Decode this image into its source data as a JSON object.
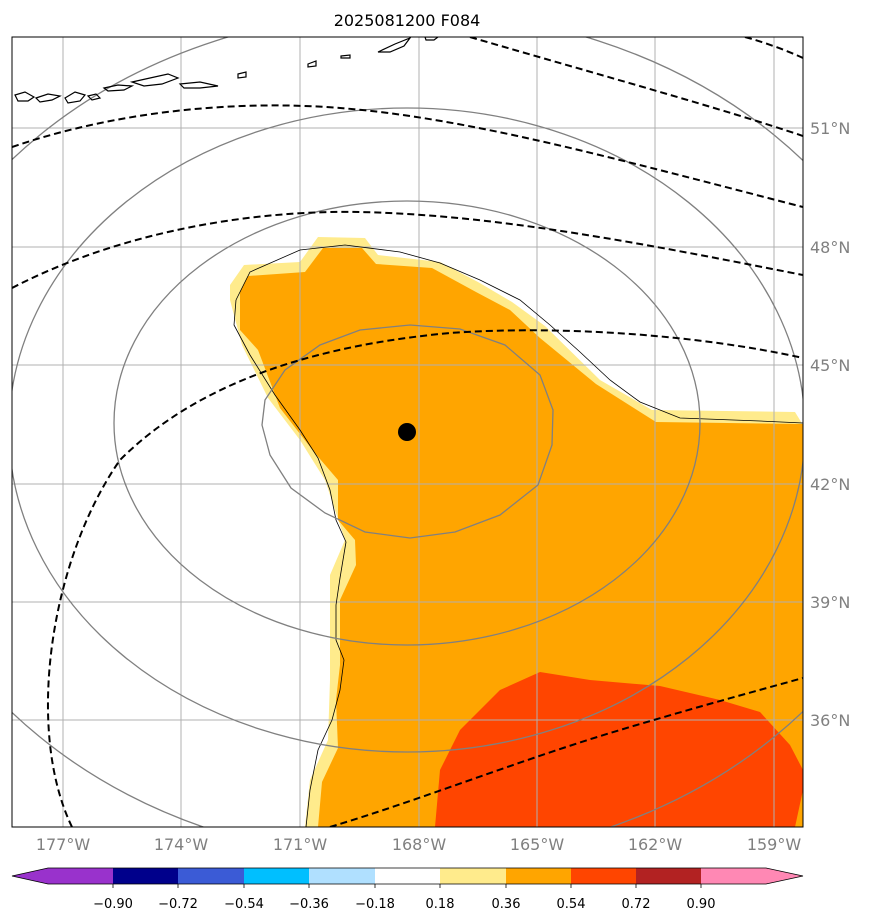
{
  "title": "2025081200 F084",
  "lon_labels": [
    "177°W",
    "174°W",
    "171°W",
    "168°W",
    "165°W",
    "162°W",
    "159°W"
  ],
  "lat_labels": [
    "51°N",
    "48°N",
    "45°N",
    "42°N",
    "39°N",
    "36°N"
  ],
  "colorbar": {
    "tick_labels": [
      "−0.90",
      "−0.72",
      "−0.54",
      "−0.36",
      "−0.18",
      "0.18",
      "0.36",
      "0.54",
      "0.72",
      "0.90"
    ],
    "colors": [
      "#9932cc",
      "#00008b",
      "#3b5bd6",
      "#00bfff",
      "#b0e0ff",
      "#ffffff",
      "#ffeb8c",
      "#ffa500",
      "#ff4500",
      "#b22222",
      "#ff88b4"
    ]
  },
  "field_colors": {
    "light": "#ffeb8c",
    "medium": "#ffa500",
    "strong": "#ff4500"
  },
  "storm_center": {
    "lon": "168°W",
    "lat": "43.3°N"
  }
}
